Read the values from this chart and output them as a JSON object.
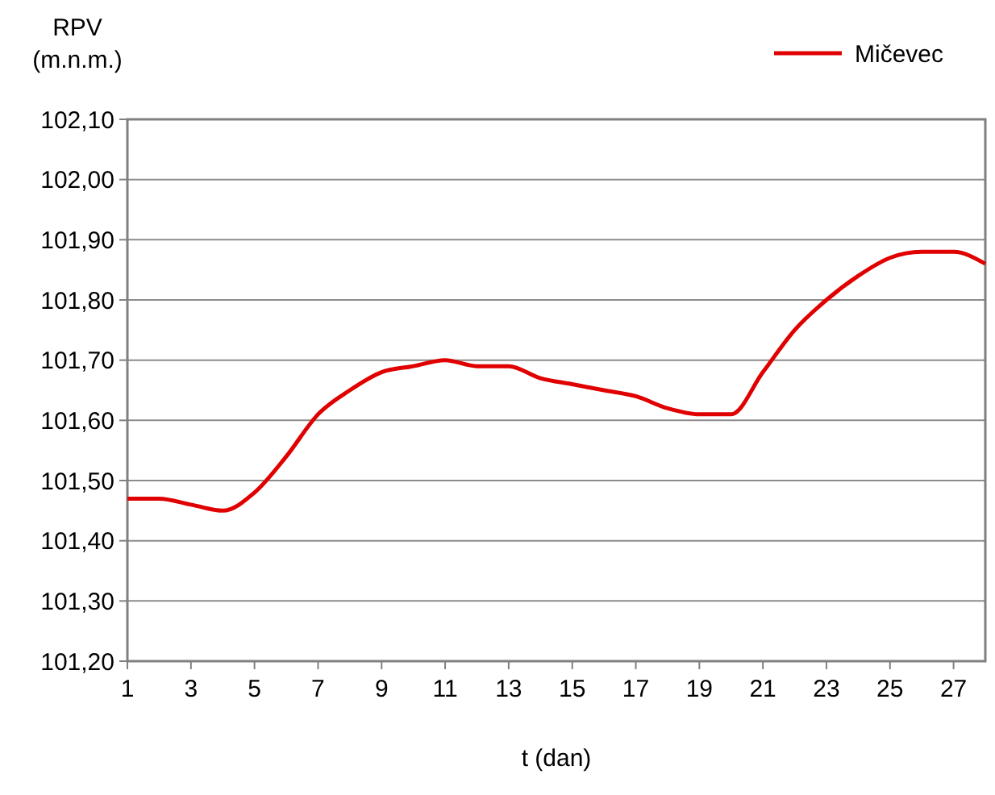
{
  "chart_data": {
    "type": "line",
    "xlabel": "t (dan)",
    "ylabel": "RPV (m.n.m.)",
    "x": [
      1,
      2,
      3,
      4,
      5,
      6,
      7,
      8,
      9,
      10,
      11,
      12,
      13,
      14,
      15,
      16,
      17,
      18,
      19,
      20,
      21,
      22,
      23,
      24,
      25,
      26,
      27,
      28
    ],
    "series": [
      {
        "name": "Mičevec",
        "color": "#e00000",
        "values": [
          101.47,
          101.47,
          101.46,
          101.45,
          101.48,
          101.54,
          101.61,
          101.65,
          101.68,
          101.69,
          101.7,
          101.69,
          101.69,
          101.67,
          101.66,
          101.65,
          101.64,
          101.62,
          101.61,
          101.61,
          101.68,
          101.75,
          101.8,
          101.84,
          101.87,
          101.88,
          101.88,
          101.86
        ]
      }
    ],
    "xlim": [
      1,
      28
    ],
    "xticks": [
      1,
      3,
      5,
      7,
      9,
      11,
      13,
      15,
      17,
      19,
      21,
      23,
      25,
      27
    ],
    "ylim": [
      101.2,
      102.1
    ],
    "yticks": [
      {
        "value": 101.2,
        "label": "101,20"
      },
      {
        "value": 101.3,
        "label": "101,30"
      },
      {
        "value": 101.4,
        "label": "101,40"
      },
      {
        "value": 101.5,
        "label": "101,50"
      },
      {
        "value": 101.6,
        "label": "101,60"
      },
      {
        "value": 101.7,
        "label": "101,70"
      },
      {
        "value": 101.8,
        "label": "101,80"
      },
      {
        "value": 101.9,
        "label": "101,90"
      },
      {
        "value": 102.0,
        "label": "102,00"
      },
      {
        "value": 102.1,
        "label": "102,10"
      }
    ],
    "grid": "y",
    "legend": "top right",
    "marker": "none",
    "line_style": "solid"
  }
}
